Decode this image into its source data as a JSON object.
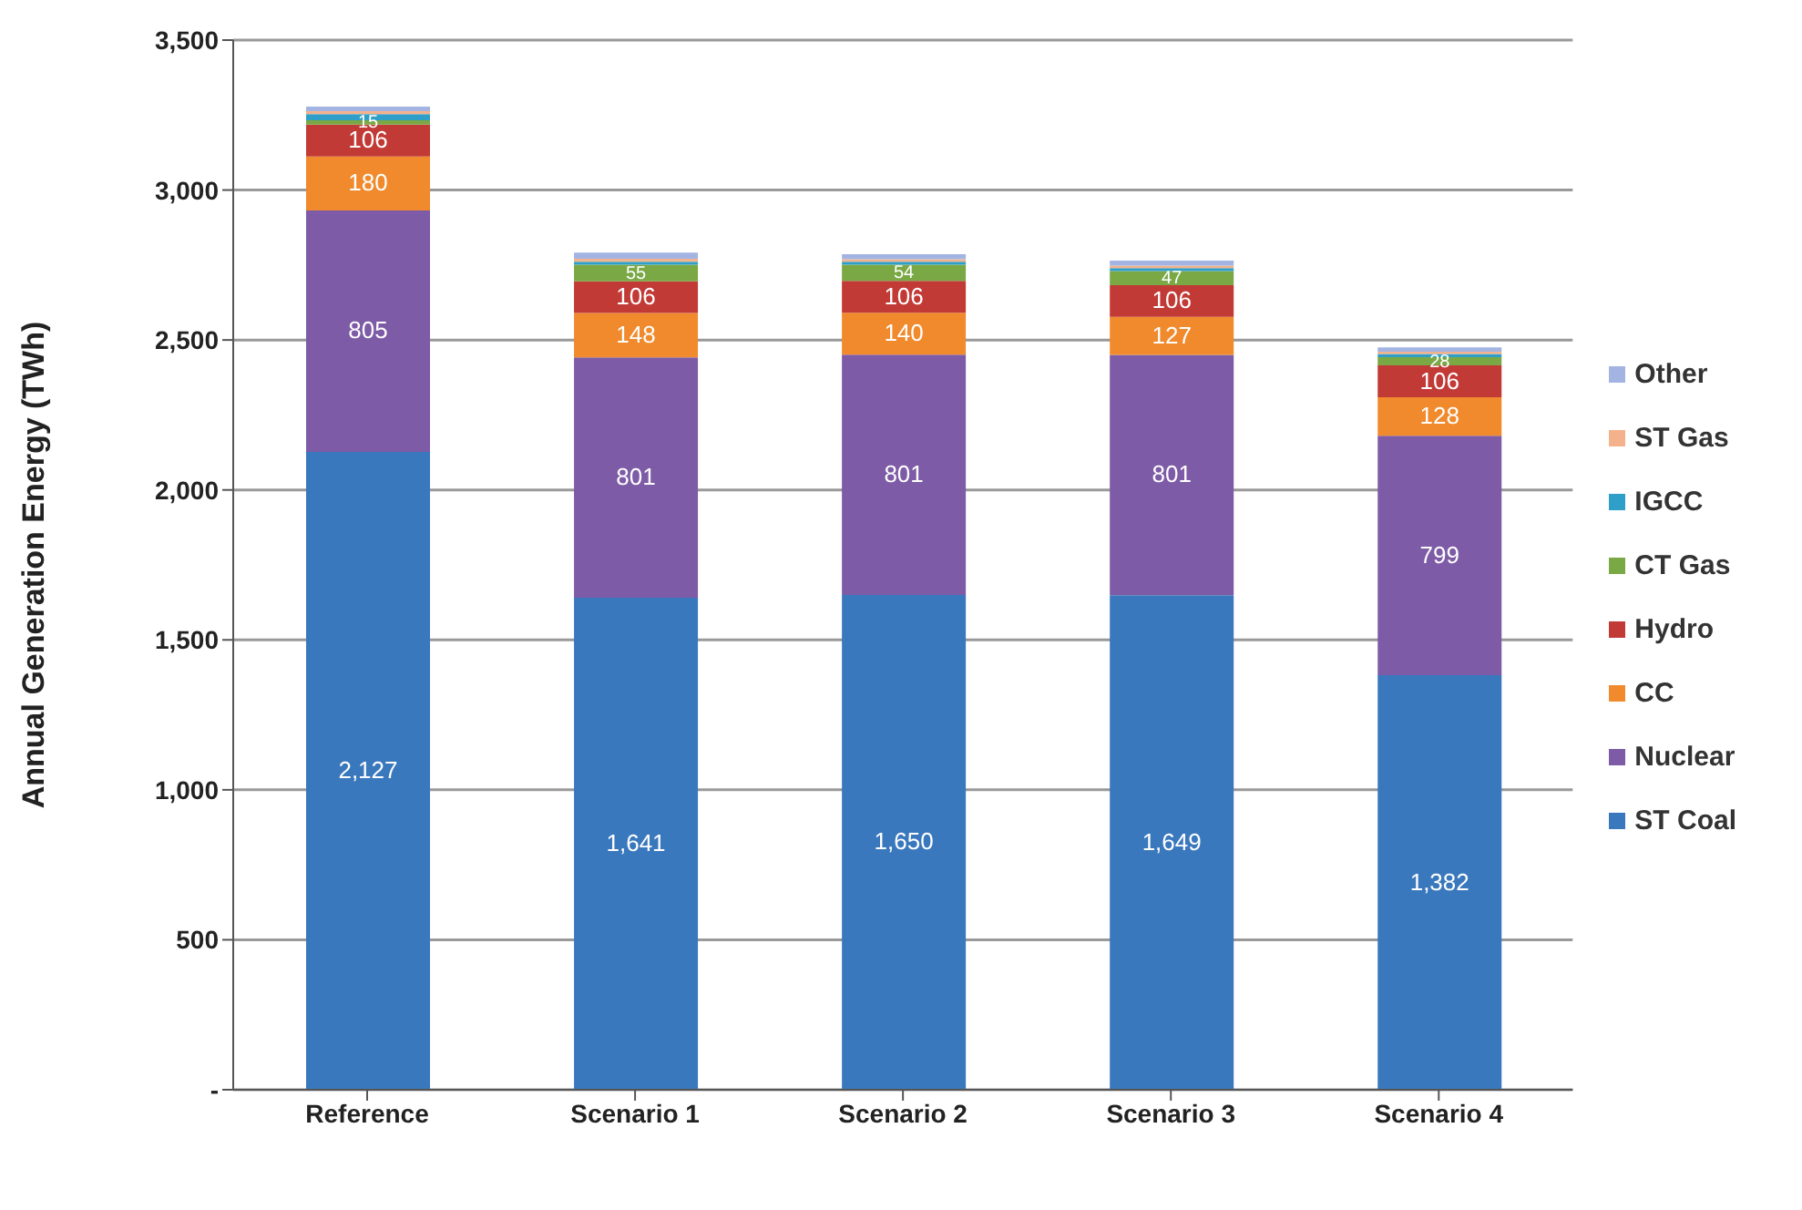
{
  "chart_data": {
    "type": "bar",
    "stacked": true,
    "ylabel": "Annual Generation Energy (TWh)",
    "categories": [
      "Reference",
      "Scenario 1",
      "Scenario 2",
      "Scenario 3",
      "Scenario 4"
    ],
    "series": [
      {
        "name": "ST Coal",
        "color": "#3a78bd",
        "values": [
          2127,
          1641,
          1650,
          1649,
          1382
        ],
        "value_labels": [
          "2,127",
          "1,641",
          "1,650",
          "1,649",
          "1,382"
        ]
      },
      {
        "name": "Nuclear",
        "color": "#7d5ba6",
        "values": [
          805,
          801,
          801,
          801,
          799
        ],
        "value_labels": [
          "805",
          "801",
          "801",
          "801",
          "799"
        ]
      },
      {
        "name": "CC",
        "color": "#f08a2c",
        "values": [
          180,
          148,
          140,
          127,
          128
        ],
        "value_labels": [
          "180",
          "148",
          "140",
          "127",
          "128"
        ]
      },
      {
        "name": "Hydro",
        "color": "#c23a36",
        "values": [
          106,
          106,
          106,
          106,
          106
        ],
        "value_labels": [
          "106",
          "106",
          "106",
          "106",
          "106"
        ]
      },
      {
        "name": "CT Gas",
        "color": "#7aa845",
        "values": [
          15,
          55,
          54,
          47,
          28
        ],
        "value_labels": [
          "15",
          "55",
          "54",
          "47",
          "28"
        ]
      },
      {
        "name": "IGCC",
        "color": "#2f9fc9",
        "values": [
          20,
          10,
          10,
          10,
          10
        ],
        "value_labels": [
          null,
          null,
          null,
          null,
          null
        ]
      },
      {
        "name": "ST Gas",
        "color": "#f4b28c",
        "values": [
          10,
          10,
          8,
          8,
          8
        ],
        "value_labels": [
          null,
          null,
          null,
          null,
          null
        ]
      },
      {
        "name": "Other",
        "color": "#a3b4e2",
        "values": [
          15,
          20,
          17,
          17,
          14
        ],
        "value_labels": [
          null,
          null,
          null,
          null,
          null
        ]
      }
    ],
    "ylim": [
      0,
      3500
    ],
    "yticks": [
      {
        "value": 0,
        "label": "-"
      },
      500,
      {
        "value": 1000,
        "label": "1,000"
      },
      {
        "value": 1500,
        "label": "1,500"
      },
      {
        "value": 2000,
        "label": "2,000"
      },
      {
        "value": 2500,
        "label": "2,500"
      },
      {
        "value": 3000,
        "label": "3,000"
      },
      {
        "value": 3500,
        "label": "3,500"
      }
    ],
    "grid": "y",
    "legend": "right"
  }
}
